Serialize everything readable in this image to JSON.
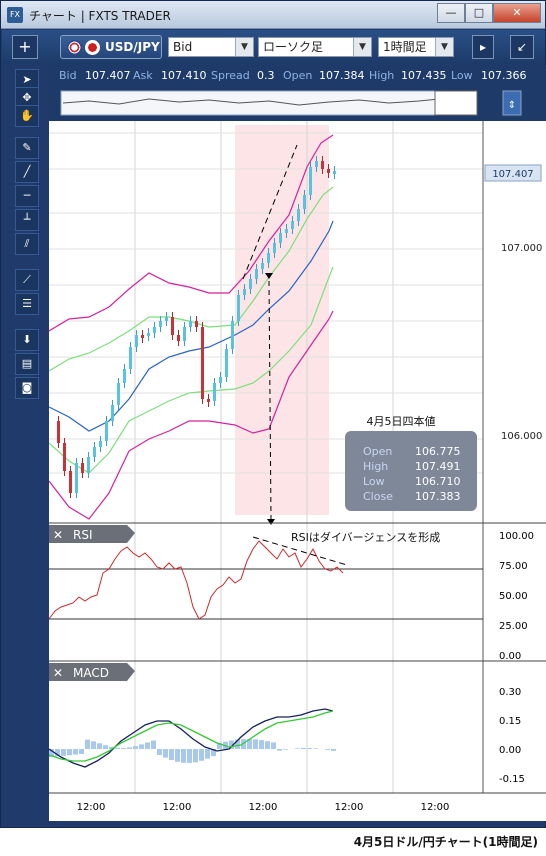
{
  "window": {
    "title": "チャート | FXTS TRADER",
    "app_icon": "FX",
    "controls": {
      "minimize": "—",
      "maximize": "□",
      "close": "✕"
    }
  },
  "toolbar": {
    "add_label": "+",
    "symbol": "USD/JPY",
    "price_type": "Bid",
    "chart_type": "ローソク足",
    "timeframe": "1時間足",
    "more_icon": "chevron-right-icon",
    "popout_icon": "popout-icon"
  },
  "quote": {
    "bid_label": "Bid",
    "bid": "107.407",
    "ask_label": "Ask",
    "ask": "107.410",
    "spread_label": "Spread",
    "spread": "0.3",
    "open_label": "Open",
    "open": "107.384",
    "high_label": "High",
    "high": "107.435",
    "low_label": "Low",
    "low": "107.366"
  },
  "left_tools": [
    "cursor-icon",
    "crosshair-cursor-icon",
    "hand-icon",
    "pencil-icon",
    "trendline-icon",
    "horizontal-line-icon",
    "vertical-line-icon",
    "parallel-lines-icon",
    "fan-icon",
    "fibonacci-icon",
    "download-icon",
    "data-table-icon",
    "camera-icon"
  ],
  "price_panel": {
    "current_price": "107.407",
    "price_ticks": [
      "107.000",
      "106.000"
    ],
    "ohlc_box": {
      "title": "4月5日四本値",
      "rows": [
        {
          "label": "Open",
          "value": "106.775"
        },
        {
          "label": "High",
          "value": "107.491"
        },
        {
          "label": "Low",
          "value": "106.710"
        },
        {
          "label": "Close",
          "value": "107.383"
        }
      ]
    }
  },
  "rsi_panel": {
    "label": "RSI",
    "ticks": [
      "100.00",
      "75.00",
      "50.00",
      "25.00",
      "0.00"
    ],
    "annotation": "RSIはダイバージェンスを形成"
  },
  "macd_panel": {
    "label": "MACD",
    "ticks": [
      "0.30",
      "0.15",
      "0.00",
      "-0.15"
    ]
  },
  "time_axis": [
    "12:00",
    "12:00",
    "12:00",
    "12:00",
    "12:00"
  ],
  "caption": "4月5日ドル/円チャート(1時間足)",
  "colors": {
    "frame": "#1f3a6b",
    "bollinger_outer": "#d5219b",
    "bollinger_inner": "#7be07b",
    "bollinger_mid": "#2764c5",
    "rsi": "#cc2a2a",
    "macd": "#16205e",
    "signal": "#34c934",
    "histogram": "#a9c8ee",
    "highlight": "#fde4e6"
  }
}
